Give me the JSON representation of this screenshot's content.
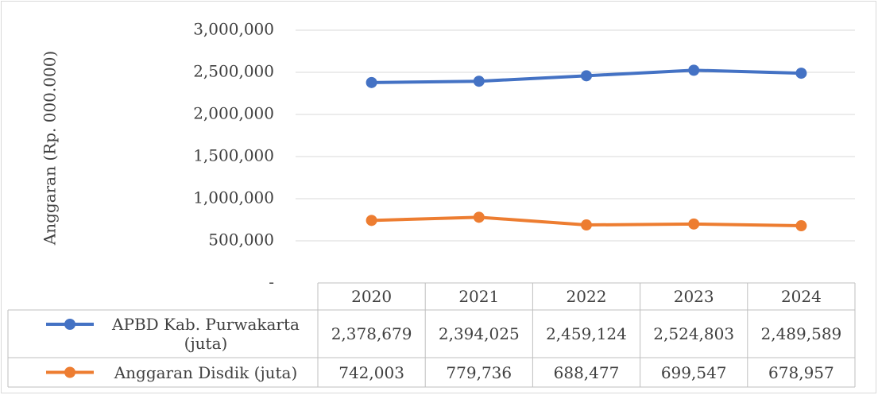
{
  "chart_data": {
    "type": "line",
    "y_label": "Anggaran (Rp. 000.000)",
    "categories": [
      "2020",
      "2021",
      "2022",
      "2023",
      "2024"
    ],
    "series": [
      {
        "name": "APBD Kab. Purwakarta (juta)",
        "color": "#4472c4",
        "values": [
          2378679,
          2394025,
          2459124,
          2524803,
          2489589
        ],
        "value_labels": [
          "2,378,679",
          "2,394,025",
          "2,459,124",
          "2,524,803",
          "2,489,589"
        ]
      },
      {
        "name": "Anggaran Disdik (juta)",
        "color": "#ed7d31",
        "values": [
          742003,
          779736,
          688477,
          699547,
          678957
        ],
        "value_labels": [
          "742,003",
          "779,736",
          "688,477",
          "699,547",
          "678,957"
        ]
      }
    ],
    "ylim": [
      0,
      3000000
    ],
    "yticks": [
      {
        "value": 0,
        "label": "-"
      },
      {
        "value": 500000,
        "label": "500,000"
      },
      {
        "value": 1000000,
        "label": "1,000,000"
      },
      {
        "value": 1500000,
        "label": "1,500,000"
      },
      {
        "value": 2000000,
        "label": "2,000,000"
      },
      {
        "value": 2500000,
        "label": "2,500,000"
      },
      {
        "value": 3000000,
        "label": "3,000,000"
      }
    ],
    "grid": true
  }
}
